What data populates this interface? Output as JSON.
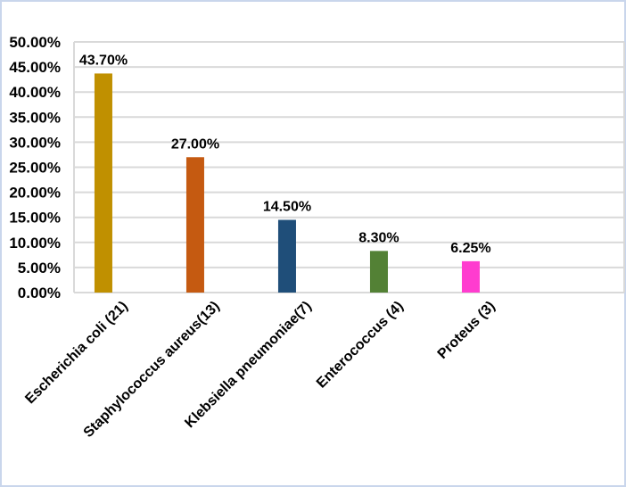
{
  "chart_data": {
    "type": "bar",
    "title": "",
    "xlabel": "",
    "ylabel": "",
    "categories": [
      "Escherichia coli (21)",
      "Staphylococcus aureus(13)",
      "Klebsiella pneumoniae(7)",
      "Enterococcus (4)",
      "Proteus (3)"
    ],
    "values": [
      43.7,
      27.0,
      14.5,
      8.3,
      6.25
    ],
    "data_labels": [
      "43.70%",
      "27.00%",
      "14.50%",
      "8.30%",
      "6.25%"
    ],
    "colors": [
      "#c09000",
      "#c55a11",
      "#1f4e79",
      "#538135",
      "#ff3ccf"
    ],
    "ylim": [
      0,
      50
    ],
    "yticks": [
      0,
      5,
      10,
      15,
      20,
      25,
      30,
      35,
      40,
      45,
      50
    ],
    "ytick_labels": [
      "0.00%",
      "5.00%",
      "10.00%",
      "15.00%",
      "20.00%",
      "25.00%",
      "30.00%",
      "35.00%",
      "40.00%",
      "45.00%",
      "50.00%"
    ],
    "grid": true,
    "legend": "none"
  }
}
